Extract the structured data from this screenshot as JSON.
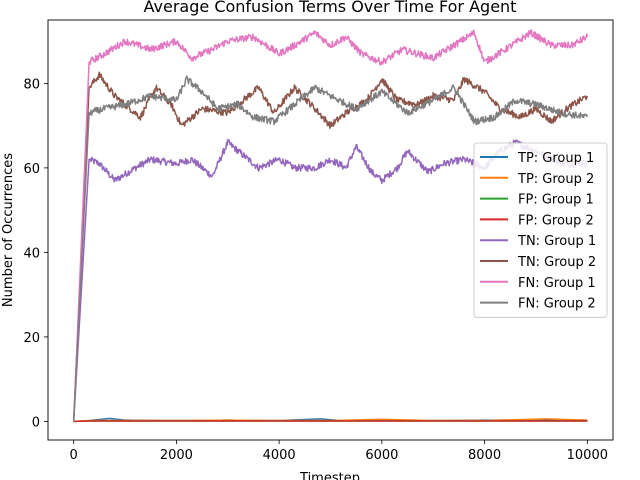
{
  "chart_data": {
    "type": "line",
    "title": "Average Confusion Terms Over Time For Agent",
    "xlabel": "Timestep",
    "ylabel": "Number of Occurrences",
    "xlim": [
      -500,
      10500
    ],
    "ylim": [
      -4.4,
      95
    ],
    "xticks": [
      0,
      2000,
      4000,
      6000,
      8000,
      10000
    ],
    "yticks": [
      0,
      20,
      40,
      60,
      80
    ],
    "grid": false,
    "legend_position": "center-right",
    "series": [
      {
        "name": "TP: Group 1",
        "color": "#1f77b4",
        "points": [
          [
            0,
            0
          ],
          [
            300,
            0.2
          ],
          [
            700,
            0.7
          ],
          [
            1000,
            0.3
          ],
          [
            2000,
            0.2
          ],
          [
            3000,
            0.3
          ],
          [
            4000,
            0.2
          ],
          [
            4800,
            0.6
          ],
          [
            5200,
            0.2
          ],
          [
            6000,
            0.3
          ],
          [
            7000,
            0.2
          ],
          [
            8000,
            0.3
          ],
          [
            9000,
            0.3
          ],
          [
            10000,
            0.3
          ]
        ]
      },
      {
        "name": "TP: Group 2",
        "color": "#ff7f0e",
        "points": [
          [
            0,
            0
          ],
          [
            300,
            0.2
          ],
          [
            1000,
            0.2
          ],
          [
            2000,
            0.2
          ],
          [
            3000,
            0.3
          ],
          [
            4000,
            0.2
          ],
          [
            5000,
            0.2
          ],
          [
            6000,
            0.5
          ],
          [
            7000,
            0.2
          ],
          [
            8000,
            0.2
          ],
          [
            9200,
            0.6
          ],
          [
            10000,
            0.3
          ]
        ]
      },
      {
        "name": "FP: Group 1",
        "color": "#2ca02c",
        "points": [
          [
            0,
            0
          ],
          [
            300,
            0.1
          ],
          [
            2000,
            0.1
          ],
          [
            4000,
            0.1
          ],
          [
            6000,
            0.1
          ],
          [
            8000,
            0.1
          ],
          [
            10000,
            0.1
          ]
        ]
      },
      {
        "name": "FP: Group 2",
        "color": "#d62728",
        "points": [
          [
            0,
            0
          ],
          [
            300,
            0.1
          ],
          [
            2000,
            0.1
          ],
          [
            4000,
            0.1
          ],
          [
            6000,
            0.1
          ],
          [
            8000,
            0.1
          ],
          [
            10000,
            0.1
          ]
        ]
      },
      {
        "name": "TN: Group 1",
        "color": "#9467bd",
        "points": [
          [
            0,
            0
          ],
          [
            300,
            62
          ],
          [
            500,
            61
          ],
          [
            800,
            57
          ],
          [
            1200,
            60
          ],
          [
            1500,
            62
          ],
          [
            2000,
            61
          ],
          [
            2300,
            62
          ],
          [
            2700,
            58
          ],
          [
            3000,
            66
          ],
          [
            3300,
            63
          ],
          [
            3600,
            60
          ],
          [
            4000,
            62
          ],
          [
            4300,
            60
          ],
          [
            4700,
            60
          ],
          [
            5000,
            62
          ],
          [
            5300,
            60
          ],
          [
            5500,
            65
          ],
          [
            5800,
            59
          ],
          [
            6000,
            57
          ],
          [
            6300,
            60
          ],
          [
            6500,
            64
          ],
          [
            6900,
            59
          ],
          [
            7200,
            61
          ],
          [
            7600,
            62
          ],
          [
            8000,
            60
          ],
          [
            8300,
            64
          ],
          [
            8600,
            66
          ],
          [
            9000,
            64
          ],
          [
            9500,
            61
          ],
          [
            10000,
            61
          ]
        ]
      },
      {
        "name": "TN: Group 2",
        "color": "#8c564b",
        "points": [
          [
            0,
            0
          ],
          [
            300,
            79
          ],
          [
            500,
            82
          ],
          [
            800,
            77
          ],
          [
            1000,
            75
          ],
          [
            1300,
            72
          ],
          [
            1600,
            79
          ],
          [
            1900,
            75
          ],
          [
            2100,
            70
          ],
          [
            2500,
            74
          ],
          [
            3000,
            73
          ],
          [
            3300,
            76
          ],
          [
            3600,
            79
          ],
          [
            3900,
            73
          ],
          [
            4300,
            79
          ],
          [
            4700,
            74
          ],
          [
            5000,
            70
          ],
          [
            5300,
            73
          ],
          [
            5700,
            76
          ],
          [
            6000,
            81
          ],
          [
            6300,
            76
          ],
          [
            6700,
            75
          ],
          [
            7000,
            77
          ],
          [
            7400,
            76
          ],
          [
            7600,
            81
          ],
          [
            8000,
            78
          ],
          [
            8300,
            74
          ],
          [
            8700,
            72
          ],
          [
            9000,
            74
          ],
          [
            9300,
            71
          ],
          [
            9600,
            74
          ],
          [
            10000,
            77
          ]
        ]
      },
      {
        "name": "FN: Group 1",
        "color": "#e377c2",
        "points": [
          [
            0,
            0
          ],
          [
            300,
            85
          ],
          [
            600,
            87
          ],
          [
            1000,
            90
          ],
          [
            1500,
            88
          ],
          [
            2000,
            90
          ],
          [
            2300,
            86
          ],
          [
            2700,
            88
          ],
          [
            3000,
            90
          ],
          [
            3500,
            91
          ],
          [
            4000,
            87
          ],
          [
            4300,
            89
          ],
          [
            4700,
            92
          ],
          [
            5000,
            89
          ],
          [
            5300,
            91
          ],
          [
            5600,
            87
          ],
          [
            6000,
            85
          ],
          [
            6400,
            88
          ],
          [
            7000,
            86
          ],
          [
            7400,
            89
          ],
          [
            7800,
            92
          ],
          [
            8000,
            85
          ],
          [
            8400,
            88
          ],
          [
            8900,
            92
          ],
          [
            9300,
            89
          ],
          [
            9700,
            89
          ],
          [
            10000,
            91
          ]
        ]
      },
      {
        "name": "FN: Group 2",
        "color": "#7f7f7f",
        "points": [
          [
            0,
            0
          ],
          [
            300,
            73
          ],
          [
            600,
            74
          ],
          [
            1000,
            75
          ],
          [
            1500,
            77
          ],
          [
            2000,
            76
          ],
          [
            2200,
            81
          ],
          [
            2500,
            78
          ],
          [
            2800,
            74
          ],
          [
            3200,
            75
          ],
          [
            3500,
            72
          ],
          [
            3900,
            71
          ],
          [
            4300,
            75
          ],
          [
            4700,
            79
          ],
          [
            5000,
            77
          ],
          [
            5500,
            74
          ],
          [
            6000,
            78
          ],
          [
            6500,
            73
          ],
          [
            7000,
            76
          ],
          [
            7400,
            79
          ],
          [
            7800,
            71
          ],
          [
            8200,
            72
          ],
          [
            8600,
            76
          ],
          [
            9000,
            75
          ],
          [
            9500,
            73
          ],
          [
            10000,
            72
          ]
        ]
      }
    ]
  }
}
